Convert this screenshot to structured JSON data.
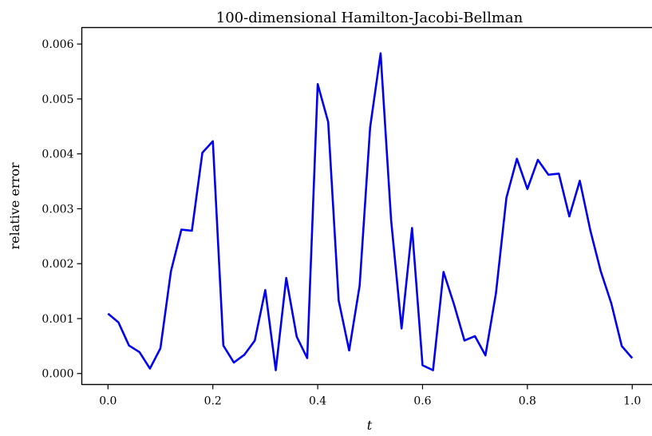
{
  "chart_data": {
    "type": "line",
    "title": "100-dimensional Hamilton-Jacobi-Bellman",
    "xlabel": "t",
    "ylabel": "relative error",
    "xlim": [
      -0.05,
      1.04
    ],
    "ylim": [
      -0.0002,
      0.0063
    ],
    "xticks": [
      0.0,
      0.2,
      0.4,
      0.6,
      0.8,
      1.0
    ],
    "xtick_labels": [
      "0.0",
      "0.2",
      "0.4",
      "0.6",
      "0.8",
      "1.0"
    ],
    "yticks": [
      0.0,
      0.001,
      0.002,
      0.003,
      0.004,
      0.005,
      0.006
    ],
    "ytick_labels": [
      "0.000",
      "0.001",
      "0.002",
      "0.003",
      "0.004",
      "0.005",
      "0.006"
    ],
    "grid": false,
    "legend": "none",
    "series": [
      {
        "color": "#0000ee",
        "x": [
          0.0,
          0.02,
          0.04,
          0.06,
          0.08,
          0.1,
          0.12,
          0.14,
          0.16,
          0.18,
          0.2,
          0.22,
          0.24,
          0.26,
          0.28,
          0.3,
          0.32,
          0.34,
          0.36,
          0.38,
          0.4,
          0.42,
          0.44,
          0.46,
          0.48,
          0.5,
          0.52,
          0.54,
          0.56,
          0.58,
          0.6,
          0.62,
          0.64,
          0.66,
          0.68,
          0.7,
          0.72,
          0.74,
          0.76,
          0.78,
          0.8,
          0.82,
          0.84,
          0.86,
          0.88,
          0.9,
          0.92,
          0.94,
          0.96,
          0.98,
          1.0
        ],
        "y": [
          0.00109,
          0.00093,
          0.00051,
          0.00039,
          9e-05,
          0.00046,
          0.00186,
          0.00262,
          0.0026,
          0.00402,
          0.00423,
          0.00051,
          0.0002,
          0.00034,
          0.0006,
          0.00152,
          6e-05,
          0.00174,
          0.00067,
          0.00028,
          0.00527,
          0.00458,
          0.00133,
          0.00042,
          0.0016,
          0.00448,
          0.00583,
          0.0028,
          0.00082,
          0.00265,
          0.00015,
          6e-05,
          0.00185,
          0.00126,
          0.0006,
          0.00068,
          0.00033,
          0.00146,
          0.0032,
          0.00391,
          0.00336,
          0.00389,
          0.00362,
          0.00364,
          0.00286,
          0.00351,
          0.00261,
          0.00186,
          0.00128,
          0.0005,
          0.00028
        ]
      }
    ]
  }
}
